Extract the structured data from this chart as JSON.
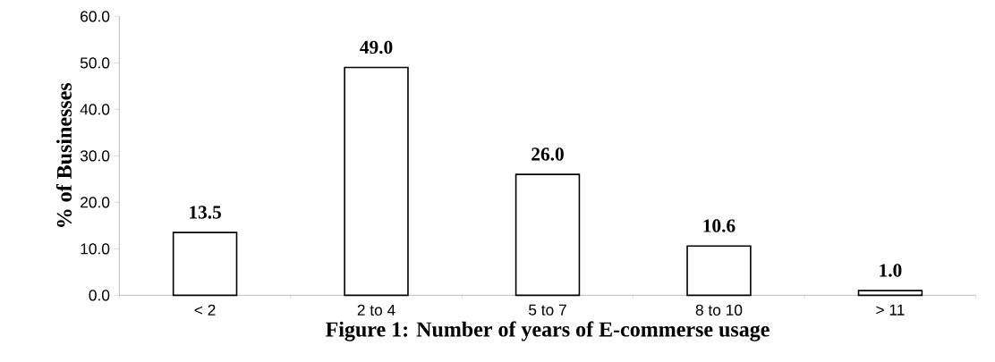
{
  "chart_data": {
    "type": "bar",
    "xlabel": "Figure 1: Number of years of E-commerse usage",
    "ylabel": "% of Businesses",
    "categories": [
      "< 2",
      "2 to 4",
      "5 to 7",
      "8 to 10",
      "> 11"
    ],
    "values": [
      13.5,
      49.0,
      26.0,
      10.6,
      1.0
    ],
    "value_labels": [
      "13.5",
      "49.0",
      "26.0",
      "10.6",
      "1.0"
    ],
    "color": "#000000",
    "ylim": [
      0,
      60
    ],
    "yticks": [
      {
        "value": 0,
        "label": "0.0"
      },
      {
        "value": 10,
        "label": "10.0"
      },
      {
        "value": 20,
        "label": "20.0"
      },
      {
        "value": 30,
        "label": "30.0"
      },
      {
        "value": 40,
        "label": "40.0"
      },
      {
        "value": 50,
        "label": "50.0"
      },
      {
        "value": 60,
        "label": "60.0"
      }
    ],
    "grid": false
  }
}
